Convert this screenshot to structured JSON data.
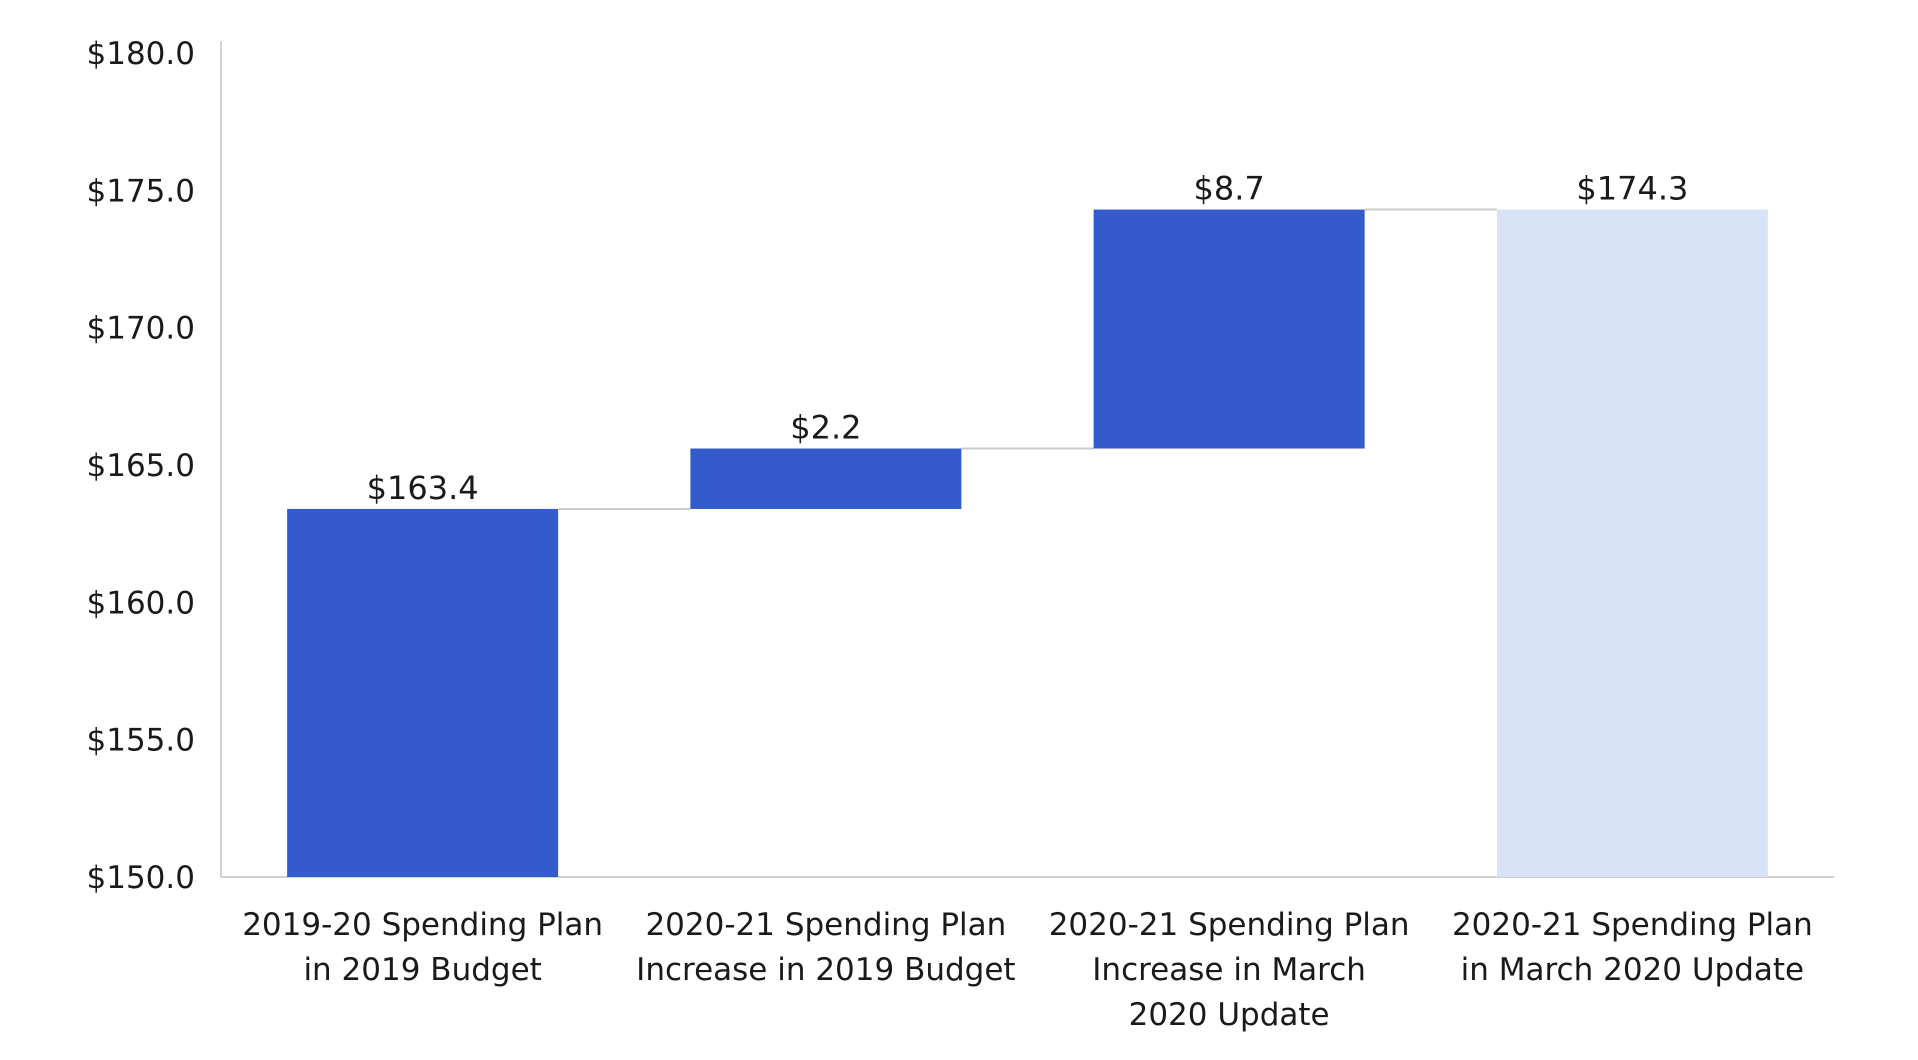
{
  "chart_data": {
    "type": "bar",
    "subtype": "waterfall",
    "title": "",
    "xlabel": "",
    "ylabel": "",
    "ylim": [
      150.0,
      180.0
    ],
    "y_ticks": [
      150.0,
      155.0,
      160.0,
      165.0,
      170.0,
      175.0,
      180.0
    ],
    "y_tick_labels": [
      "$150.0",
      "$155.0",
      "$160.0",
      "$165.0",
      "$170.0",
      "$175.0",
      "$180.0"
    ],
    "grid": false,
    "legend": "none",
    "categories": [
      [
        "2019-20 Spending Plan",
        "in 2019 Budget"
      ],
      [
        "2020-21 Spending Plan",
        "Increase in 2019 Budget"
      ],
      [
        "2020-21 Spending Plan",
        "Increase in March",
        "2020 Update"
      ],
      [
        "2020-21 Spending Plan",
        "in March 2020 Update"
      ]
    ],
    "bars": [
      {
        "kind": "total",
        "start": 150.0,
        "end": 163.4,
        "label": "$163.4"
      },
      {
        "kind": "increase",
        "start": 163.4,
        "end": 165.6,
        "label": "$2.2"
      },
      {
        "kind": "increase",
        "start": 165.6,
        "end": 174.3,
        "label": "$8.7"
      },
      {
        "kind": "total",
        "start": 150.0,
        "end": 174.3,
        "label": "$174.3"
      }
    ],
    "colors": {
      "bar": "#335bcc",
      "total_bar": "#d9e3f8",
      "axis": "#d0d0d0",
      "connector": "#cccccc"
    }
  }
}
